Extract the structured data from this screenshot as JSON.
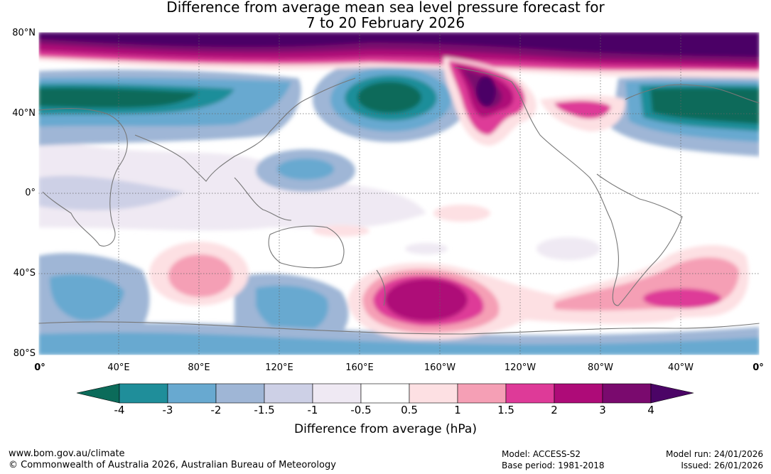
{
  "title": {
    "line1": "Difference from average mean sea level pressure forecast for",
    "line2": "7 to 20 February 2026"
  },
  "map": {
    "lat_labels": [
      "80°N",
      "40°N",
      "0°",
      "40°S",
      "80°S"
    ],
    "lon_labels": [
      "0°",
      "40°E",
      "80°E",
      "120°E",
      "160°E",
      "160°W",
      "120°W",
      "80°W",
      "40°W",
      "0°"
    ]
  },
  "colorbar": {
    "title": "Difference from average (hPa)",
    "tick_labels": [
      "-4",
      "-3",
      "-2",
      "-1.5",
      "-1",
      "-0.5",
      "0.5",
      "1",
      "1.5",
      "2",
      "3",
      "4"
    ],
    "colors": [
      "#0b6b5a",
      "#1f8e9a",
      "#68a9d0",
      "#9fb6d6",
      "#cdd0e6",
      "#efe9f3",
      "#ffffff",
      "#fde0e3",
      "#f59fb5",
      "#de3a98",
      "#ae0b78",
      "#7a0a6e",
      "#4b0466"
    ]
  },
  "footer": {
    "website": "www.bom.gov.au/climate",
    "copyright": "© Commonwealth of Australia 2026, Australian Bureau of Meteorology",
    "model": "Model: ACCESS-S2",
    "base_period": "Base period: 1981-2018",
    "model_run": "Model run: 24/01/2026",
    "issued": "Issued: 26/01/2026"
  }
}
